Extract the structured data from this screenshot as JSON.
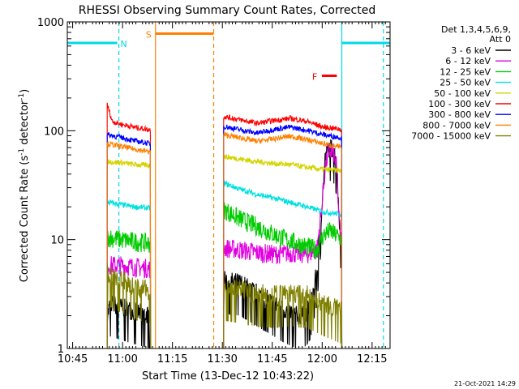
{
  "chart_data": {
    "type": "line",
    "title": "RHESSI Observing Summary Count Rates, Corrected",
    "xlabel": "Start Time (13-Dec-12 10:43:22)",
    "ylabel_main": "Corrected Count Rate (s",
    "ylabel_sup1": "-1",
    "ylabel_mid": " detector",
    "ylabel_sup2": "-1",
    "ylabel_end": ")",
    "x_unit": "minutes since 10:43:22",
    "xlim": [
      0,
      97
    ],
    "ylim": [
      1,
      1000
    ],
    "yscale": "log",
    "x_ticks": [
      {
        "label": "10:45",
        "value": 1.6
      },
      {
        "label": "11:00",
        "value": 16.6
      },
      {
        "label": "11:15",
        "value": 31.6
      },
      {
        "label": "11:30",
        "value": 46.6
      },
      {
        "label": "11:45",
        "value": 61.6
      },
      {
        "label": "12:00",
        "value": 76.6
      },
      {
        "label": "12:15",
        "value": 91.6
      }
    ],
    "y_ticks": [
      {
        "label": "1",
        "value": 1
      },
      {
        "label": "10",
        "value": 10
      },
      {
        "label": "100",
        "value": 100
      },
      {
        "label": "1000",
        "value": 1000
      }
    ],
    "legend": {
      "position": "right",
      "header1": "Det 1,3,4,5,6,9,",
      "header2": "Att 0"
    },
    "series": [
      {
        "name": "3 - 6 keV",
        "color": "#000000",
        "segments": [
          {
            "x": [
              12,
              13,
              16,
              20,
              25
            ],
            "y": [
              2,
              2.6,
              2.4,
              2.2,
              2
            ]
          },
          {
            "x": [
              47,
              52,
              57,
              62,
              66,
              69,
              71,
              73,
              75,
              76.5,
              77.5,
              78.5,
              80,
              81,
              81.5,
              82.5
            ],
            "y": [
              4.2,
              4,
              3.2,
              2.6,
              2.2,
              2,
              2,
              2.4,
              5,
              20,
              55,
              70,
              68,
              50,
              20,
              8
            ]
          }
        ]
      },
      {
        "name": "6 - 12 keV",
        "color": "#e000e0",
        "segments": [
          {
            "x": [
              12,
              16,
              20,
              25
            ],
            "y": [
              5.8,
              5.8,
              5.6,
              5.4
            ]
          },
          {
            "x": [
              47,
              52,
              57,
              62,
              67,
              72,
              75,
              76.5,
              77.5,
              78.5,
              80,
              81,
              81.5,
              82.5
            ],
            "y": [
              8.4,
              8,
              7.6,
              7.3,
              7.5,
              7.3,
              8,
              20,
              45,
              65,
              62,
              45,
              18,
              8
            ]
          }
        ]
      },
      {
        "name": "12 - 25 keV",
        "color": "#00cc00",
        "segments": [
          {
            "x": [
              12,
              16,
              20,
              25
            ],
            "y": [
              10.5,
              10,
              9.6,
              9.2
            ]
          },
          {
            "x": [
              47,
              51,
              55,
              60,
              64,
              68,
              72,
              75,
              77,
              79,
              82.5
            ],
            "y": [
              19,
              16,
              14,
              12,
              10.5,
              9.5,
              8.6,
              8,
              11,
              12,
              10
            ]
          }
        ]
      },
      {
        "name": "25 - 50 keV",
        "color": "#00e0e0",
        "segments": [
          {
            "x": [
              12,
              16,
              20,
              25
            ],
            "y": [
              22,
              21,
              20,
              19.5
            ]
          },
          {
            "x": [
              47,
              52,
              57,
              62,
              67,
              72,
              77,
              82.5
            ],
            "y": [
              33,
              29,
              26,
              24,
              22,
              20,
              18,
              17
            ]
          }
        ]
      },
      {
        "name": "50 - 100 keV",
        "color": "#d4d400",
        "segments": [
          {
            "x": [
              12,
              16,
              20,
              25
            ],
            "y": [
              52,
              51,
              49,
              48
            ]
          },
          {
            "x": [
              47,
              52,
              57,
              62,
              67,
              72,
              77,
              82.5
            ],
            "y": [
              58,
              55,
              52,
              50,
              49,
              46,
              44,
              43
            ]
          }
        ]
      },
      {
        "name": "100 - 300 keV",
        "color": "#ff0000",
        "segments": [
          {
            "x": [
              12,
              13.5,
              16,
              20,
              25
            ],
            "y": [
              175,
              122,
              115,
              108,
              102
            ]
          },
          {
            "x": [
              47,
              52,
              57,
              62,
              67,
              72,
              77,
              82.5
            ],
            "y": [
              135,
              126,
              117,
              124,
              130,
              122,
              108,
              103
            ]
          }
        ]
      },
      {
        "name": "300 - 800 keV",
        "color": "#0000ff",
        "segments": [
          {
            "x": [
              12,
              16,
              20,
              25
            ],
            "y": [
              92,
              87,
              81,
              76
            ]
          },
          {
            "x": [
              47,
              52,
              57,
              62,
              67,
              72,
              77,
              82.5
            ],
            "y": [
              110,
              102,
              95,
              103,
              108,
              101,
              92,
              86
            ]
          }
        ]
      },
      {
        "name": "800 - 7000 keV",
        "color": "#ff8000",
        "segments": [
          {
            "x": [
              12,
              16,
              20,
              25
            ],
            "y": [
              76,
              72,
              68,
              64
            ]
          },
          {
            "x": [
              47,
              52,
              57,
              62,
              67,
              72,
              77,
              82.5
            ],
            "y": [
              92,
              86,
              80,
              84,
              89,
              83,
              76,
              70
            ]
          }
        ]
      },
      {
        "name": "7000 - 15000 keV",
        "color": "#808000",
        "segments": [
          {
            "x": [
              12,
              16,
              20,
              25
            ],
            "y": [
              5,
              4.3,
              3.7,
              3.4
            ]
          },
          {
            "x": [
              47,
              52,
              57,
              62,
              67,
              72,
              77,
              82.5
            ],
            "y": [
              3.6,
              3.4,
              3.2,
              3.1,
              3.2,
              3.1,
              2.6,
              2.2
            ]
          }
        ]
      }
    ],
    "event_markers": [
      {
        "label": "N",
        "color": "#00d8e8",
        "segments": [
          [
            0,
            15
          ],
          [
            82.5,
            97
          ]
        ],
        "y": 640,
        "dashed_x": [
          15.5,
          95
        ],
        "solid_x": [
          82.5
        ]
      },
      {
        "label": "S",
        "color": "#ff8000",
        "segments": [
          [
            26.5,
            44
          ]
        ],
        "y": 780,
        "dashed_x": [
          44
        ],
        "solid_x": [
          26.5
        ]
      },
      {
        "label": "F",
        "color": "#ff0000",
        "segments": [
          [
            76.5,
            81
          ]
        ],
        "y": 320,
        "dashed_x": [],
        "solid_x": []
      }
    ],
    "footer_date": "21-Oct-2021 14:29"
  }
}
